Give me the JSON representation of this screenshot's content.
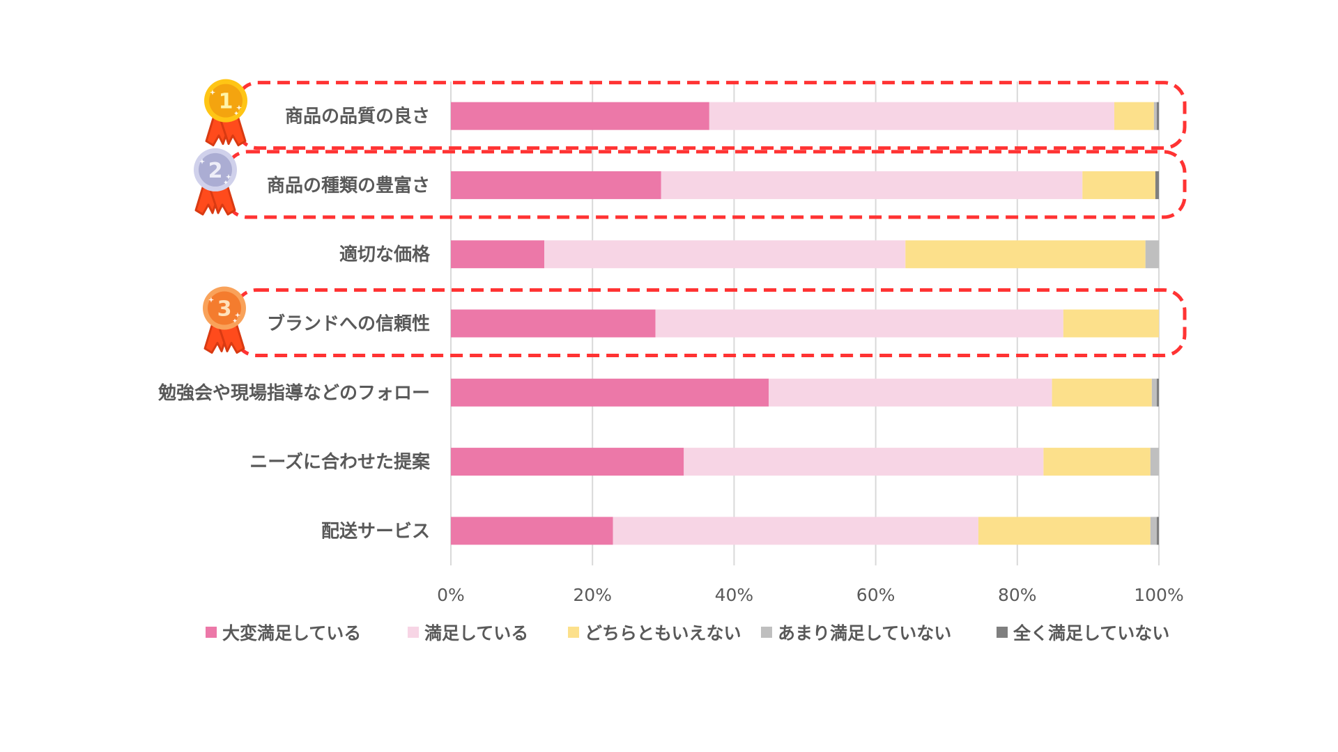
{
  "chart_data": {
    "type": "bar",
    "orientation": "horizontal",
    "stacked": "100%",
    "title": "",
    "xlabel": "",
    "ylabel": "",
    "xlim": [
      0,
      100
    ],
    "grid": true,
    "legend_position": "bottom",
    "x_ticks": [
      "0%",
      "20%",
      "40%",
      "60%",
      "80%",
      "100%"
    ],
    "x_tick_values": [
      0,
      20,
      40,
      60,
      80,
      100
    ],
    "categories": [
      "商品の品質の良さ",
      "商品の種類の豊富さ",
      "適切な価格",
      "ブランドへの信頼性",
      "勉強会や現場指導などのフォロー",
      "ニーズに合わせた提案",
      "配送サービス"
    ],
    "series": [
      {
        "name": "大変満足している",
        "color": "#EC78A8",
        "values": [
          36.5,
          29.7,
          13.2,
          28.9,
          44.9,
          32.9,
          22.9
        ]
      },
      {
        "name": "満足している",
        "color": "#F7D5E5",
        "values": [
          57.2,
          59.5,
          51.0,
          57.6,
          40.0,
          50.8,
          51.6
        ]
      },
      {
        "name": "どちらともいえない",
        "color": "#FCE08B",
        "values": [
          5.6,
          10.3,
          33.9,
          13.5,
          14.1,
          15.1,
          24.3
        ]
      },
      {
        "name": "あまり満足していない",
        "color": "#BFBFBF",
        "values": [
          0.4,
          0.0,
          1.9,
          0.0,
          0.7,
          1.2,
          0.9
        ]
      },
      {
        "name": "全く満足していない",
        "color": "#7F7F7F",
        "values": [
          0.3,
          0.5,
          0.0,
          0.0,
          0.3,
          0.0,
          0.3
        ]
      }
    ],
    "annotations": {
      "highlight_color": "#FF3333",
      "rankings": [
        {
          "rank": "1",
          "category_index": 0,
          "medal": "gold"
        },
        {
          "rank": "2",
          "category_index": 1,
          "medal": "silver"
        },
        {
          "rank": "3",
          "category_index": 3,
          "medal": "bronze"
        }
      ]
    }
  },
  "medal_colors": {
    "gold": {
      "outer": "#FFC515",
      "inner": "#F4A40F",
      "text": "#FFF3A8"
    },
    "silver": {
      "outer": "#D0D1EB",
      "inner": "#ABADD3",
      "text": "#EEEEF8"
    },
    "bronze": {
      "outer": "#F9A25A",
      "inner": "#F47C2E",
      "text": "#FFE2BC"
    },
    "ribbon": "#FF4B1C",
    "ribbon_dark": "#D93A12"
  }
}
